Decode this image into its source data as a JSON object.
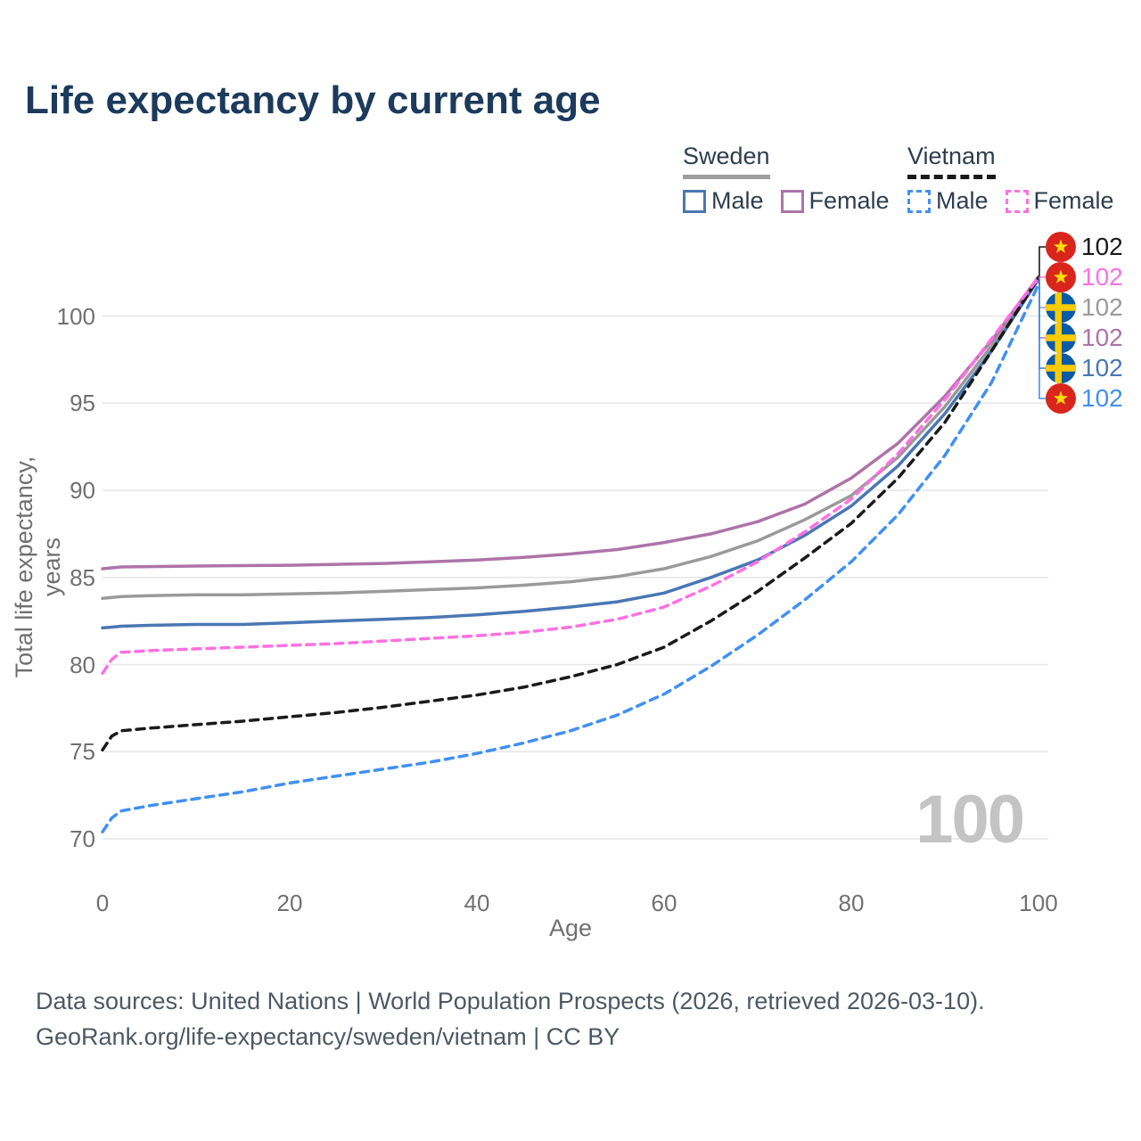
{
  "title": "Life expectancy by current age",
  "legend": {
    "groups": [
      {
        "label": "Sweden",
        "line_style": "solid",
        "underline_color": "#9e9e9e",
        "items": [
          {
            "label": "Male",
            "color": "#4a77b4",
            "dashed": false
          },
          {
            "label": "Female",
            "color": "#ad74a8",
            "dashed": false
          }
        ]
      },
      {
        "label": "Vietnam",
        "line_style": "dashed",
        "underline_color": "#1a1a1a",
        "items": [
          {
            "label": "Male",
            "color": "#4190f2",
            "dashed": true
          },
          {
            "label": "Female",
            "color": "#ff70e2",
            "dashed": true
          }
        ]
      }
    ]
  },
  "chart_data": {
    "type": "line",
    "title": "Life expectancy by current age",
    "xlabel": "Age",
    "ylabel": "Total life expectancy, years",
    "x_ticks": [
      0,
      20,
      40,
      60,
      80,
      100
    ],
    "y_ticks": [
      70,
      75,
      80,
      85,
      90,
      95,
      100
    ],
    "xlim": [
      0,
      100
    ],
    "ylim": [
      69.5,
      103
    ],
    "grid": "horizontal",
    "legend_position": "top-right",
    "x": [
      0,
      1,
      2,
      5,
      10,
      15,
      20,
      25,
      30,
      35,
      40,
      45,
      50,
      55,
      60,
      65,
      70,
      75,
      80,
      85,
      90,
      95,
      100
    ],
    "series": [
      {
        "name": "Vietnam",
        "country": "vietnam",
        "color": "#1a1a1a",
        "dashed": true,
        "end_label": "102",
        "values": [
          75.1,
          75.9,
          76.2,
          76.35,
          76.55,
          76.75,
          77.0,
          77.25,
          77.55,
          77.9,
          78.25,
          78.7,
          79.3,
          80.0,
          81.0,
          82.5,
          84.2,
          86.1,
          88.1,
          90.7,
          93.9,
          98.0,
          102.2
        ]
      },
      {
        "name": "Vietnam Female",
        "country": "vietnam",
        "color": "#ff70e2",
        "dashed": true,
        "end_label": "102",
        "values": [
          79.5,
          80.3,
          80.7,
          80.8,
          80.9,
          81.0,
          81.1,
          81.2,
          81.35,
          81.5,
          81.65,
          81.85,
          82.15,
          82.6,
          83.3,
          84.5,
          85.9,
          87.6,
          89.5,
          92.1,
          95.2,
          98.7,
          102.2
        ]
      },
      {
        "name": "Sweden",
        "country": "sweden",
        "color": "#9a9a9a",
        "dashed": false,
        "end_label": "102",
        "values": [
          83.8,
          83.85,
          83.9,
          83.95,
          84.0,
          84.0,
          84.05,
          84.1,
          84.2,
          84.3,
          84.4,
          84.55,
          84.75,
          85.05,
          85.5,
          86.2,
          87.1,
          88.3,
          89.7,
          91.9,
          94.8,
          98.3,
          102.2
        ]
      },
      {
        "name": "Sweden Female",
        "country": "sweden",
        "color": "#ad74a8",
        "dashed": false,
        "end_label": "102",
        "values": [
          85.5,
          85.55,
          85.6,
          85.62,
          85.65,
          85.68,
          85.7,
          85.75,
          85.8,
          85.9,
          86.0,
          86.15,
          86.35,
          86.6,
          87.0,
          87.5,
          88.2,
          89.2,
          90.7,
          92.7,
          95.4,
          98.6,
          102.25
        ]
      },
      {
        "name": "Sweden Male",
        "country": "sweden",
        "color": "#4a77b4",
        "dashed": false,
        "end_label": "102",
        "values": [
          82.1,
          82.15,
          82.2,
          82.25,
          82.3,
          82.3,
          82.4,
          82.5,
          82.6,
          82.7,
          82.85,
          83.05,
          83.3,
          83.6,
          84.1,
          85.0,
          86.0,
          87.4,
          89.1,
          91.4,
          94.4,
          98.0,
          102.1
        ]
      },
      {
        "name": "Vietnam Male",
        "country": "vietnam",
        "color": "#4190f2",
        "dashed": true,
        "end_label": "102",
        "values": [
          70.4,
          71.2,
          71.6,
          71.9,
          72.3,
          72.7,
          73.2,
          73.6,
          74.0,
          74.4,
          74.9,
          75.5,
          76.2,
          77.1,
          78.3,
          79.9,
          81.7,
          83.7,
          85.9,
          88.6,
          92.0,
          96.2,
          101.8
        ]
      }
    ]
  },
  "watermark": "100",
  "colors": {
    "title": "#1c3a5c",
    "axis_text": "#707070",
    "gridline": "#e6e6e6",
    "footer_text": "#4e5864",
    "watermark": "#c4c4c4",
    "sweden_flag_blue": "#0b5aa5",
    "sweden_flag_yellow": "#fecb02",
    "vietnam_flag_red": "#da251d",
    "vietnam_flag_yellow": "#ffde00"
  },
  "footer": {
    "line1": "Data sources: United Nations | World Population Prospects (2026, retrieved 2026-03-10).",
    "line2": "GeoRank.org/life-expectancy/sweden/vietnam | CC BY"
  }
}
